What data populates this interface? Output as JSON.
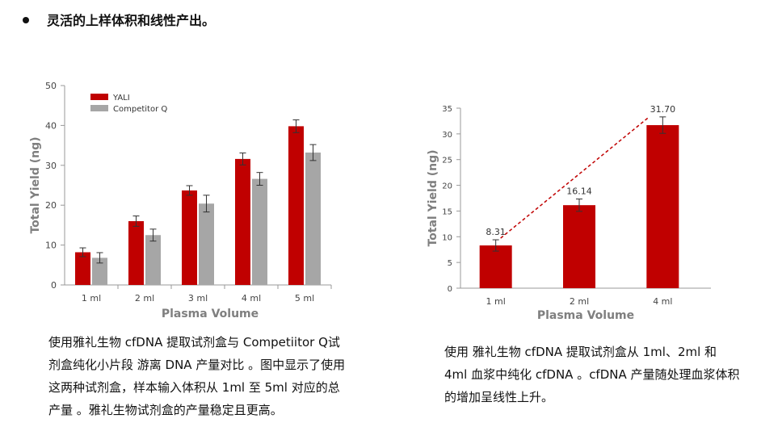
{
  "heading": "灵活的上样体积和线性产出。",
  "captions": {
    "left": "使用雅礼生物 cfDNA 提取试剂盒与 Competiitor Q试剂盒纯化小片段 游离 DNA 产量对比 。图中显示了使用这两种试剂盒，样本输入体积从 1ml 至 5ml 对应的总产量 。雅礼生物试剂盒的产量稳定且更高。",
    "right": "使用 雅礼生物 cfDNA 提取试剂盒从 1ml、2ml 和 4ml 血浆中纯化 cfDNA 。cfDNA 产量随处理血浆体积的增加呈线性上升。"
  },
  "colors": {
    "yali": "#c00000",
    "competitor": "#a6a6a6",
    "trend": "#c00000"
  },
  "chart_data": [
    {
      "type": "bar",
      "categories": [
        "1 ml",
        "2 ml",
        "3 ml",
        "4 ml",
        "5 ml"
      ],
      "series": [
        {
          "name": "YALI",
          "values": [
            8.2,
            16.0,
            23.7,
            31.6,
            39.8
          ],
          "errors": [
            1.1,
            1.3,
            1.2,
            1.5,
            1.6
          ]
        },
        {
          "name": "Competitor Q",
          "values": [
            6.8,
            12.5,
            20.4,
            26.6,
            33.2
          ],
          "errors": [
            1.3,
            1.5,
            2.1,
            1.6,
            2.0
          ]
        }
      ],
      "xlabel": "Plasma Volume",
      "ylabel": "Total Yield (ng)",
      "ylim": [
        0,
        50
      ],
      "yticks": [
        0,
        10,
        20,
        30,
        40,
        50
      ],
      "legend": "top-left",
      "grid": false
    },
    {
      "type": "bar",
      "categories": [
        "1 ml",
        "2 ml",
        "4 ml"
      ],
      "values": [
        8.31,
        16.14,
        31.7
      ],
      "labels": [
        "8.31",
        "16.14",
        "31.70"
      ],
      "errors": [
        1.1,
        1.2,
        1.6
      ],
      "xlabel": "Plasma Volume",
      "ylabel": "Total Yield (ng)",
      "ylim": [
        0,
        35
      ],
      "yticks": [
        0,
        5,
        10,
        15,
        20,
        25,
        30,
        35
      ],
      "trendline": "dashed",
      "grid": false
    }
  ]
}
